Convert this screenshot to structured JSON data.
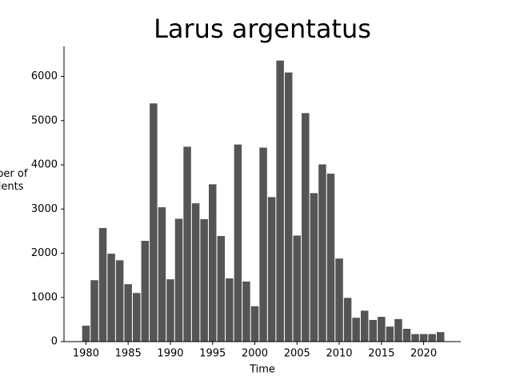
{
  "chart_data": {
    "type": "bar",
    "title": "Larus argentatus",
    "x_label": "Time",
    "y_label": "Number of incidents",
    "x": [
      1980,
      1981,
      1982,
      1983,
      1984,
      1985,
      1986,
      1987,
      1988,
      1989,
      1990,
      1991,
      1992,
      1993,
      1994,
      1995,
      1996,
      1997,
      1998,
      1999,
      2000,
      2001,
      2002,
      2003,
      2004,
      2005,
      2006,
      2007,
      2008,
      2009,
      2010,
      2011,
      2012,
      2013,
      2014,
      2015,
      2016,
      2017,
      2018,
      2019,
      2020,
      2021,
      2022
    ],
    "values": [
      360,
      1390,
      2570,
      1990,
      1840,
      1300,
      1100,
      2280,
      5390,
      3040,
      1410,
      2780,
      4410,
      3130,
      2770,
      3560,
      2390,
      1430,
      4460,
      1360,
      800,
      4390,
      3270,
      6360,
      6090,
      2400,
      5170,
      3360,
      4010,
      3800,
      1880,
      990,
      540,
      700,
      490,
      560,
      340,
      510,
      290,
      170,
      170,
      170,
      215
    ],
    "color": "#555555",
    "xlim": [
      1977.4,
      2024.4
    ],
    "xticks": [
      1980,
      1985,
      1990,
      1995,
      2000,
      2005,
      2010,
      2015,
      2020
    ],
    "ylim": [
      0,
      6680
    ],
    "yticks": [
      0,
      1000,
      2000,
      3000,
      4000,
      5000,
      6000
    ],
    "grid": false
  }
}
